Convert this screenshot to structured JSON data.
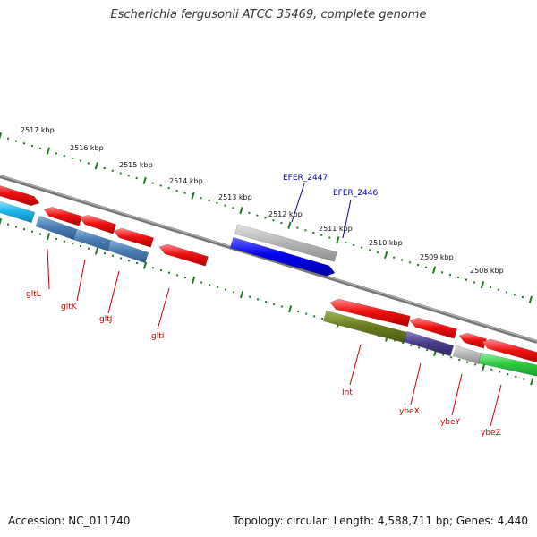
{
  "title": "Escherichia fergusonii ATCC 35469, complete genome",
  "footer": {
    "accession": "Accession: NC_011740",
    "info": "Topology: circular; Length: 4,588,711 bp; Genes: 4,440"
  },
  "ruler": {
    "labels": [
      "2517 kbp",
      "2516 kbp",
      "2515 kbp",
      "2514 kbp",
      "2513 kbp",
      "2512 kbp",
      "2511 kbp",
      "2510 kbp",
      "2509 kbp",
      "2508 kbp"
    ]
  },
  "genes": [
    {
      "name": "gltL"
    },
    {
      "name": "gltK"
    },
    {
      "name": "gltJ"
    },
    {
      "name": "gltI"
    },
    {
      "name": "EFER_2447"
    },
    {
      "name": "EFER_2446"
    },
    {
      "name": "Int"
    },
    {
      "name": "ybeX"
    },
    {
      "name": "ybeY"
    },
    {
      "name": "ybeZ"
    }
  ],
  "colors": {
    "red_gene": "#ee1111",
    "blue_gene": "#0000ee",
    "grey_gene": "#b8b8b8",
    "steel_gene": "#4a7fb5",
    "cyan_gene": "#22bbee",
    "olive_gene": "#6b7f1f",
    "purple_gene": "#4a3f8a",
    "green_gene": "#2ecc40",
    "ruler": "#1a7a1a",
    "red_label": "#cc0000",
    "blue_label": "#000099",
    "backbone": "#777777"
  }
}
